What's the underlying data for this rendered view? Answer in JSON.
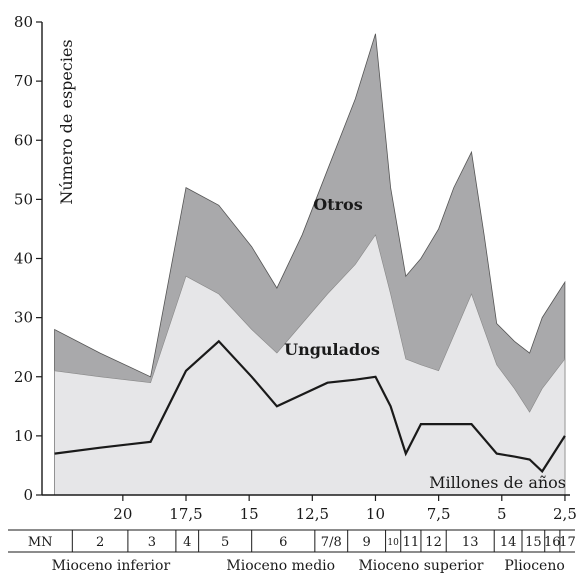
{
  "chart_data": {
    "type": "area",
    "title": "",
    "ylabel": "Número de especies",
    "xlabel": "Millones de años",
    "ylim": [
      0,
      80
    ],
    "xlim": [
      23.2,
      2.3
    ],
    "yticks": [
      0,
      10,
      20,
      30,
      40,
      50,
      60,
      70,
      80
    ],
    "xticks": [
      "20",
      "17,5",
      "15",
      "12,5",
      "10",
      "7,5",
      "5",
      "2,5"
    ],
    "xtick_values": [
      20,
      17.5,
      15,
      12.5,
      10,
      7.5,
      5,
      2.5
    ],
    "series_labels": {
      "others": "Otros",
      "ungulates": "Ungulados"
    },
    "colors": {
      "others": "#a9a9ab",
      "ungulates": "#e6e6e8",
      "line": "#1a1a1a"
    },
    "series": [
      {
        "name": "Otros",
        "x": [
          22.7,
          20.9,
          18.9,
          17.5,
          16.2,
          14.9,
          13.9,
          12.9,
          11.9,
          10.8,
          10.0,
          9.4,
          8.8,
          8.2,
          7.5,
          6.9,
          6.2,
          5.7,
          5.2,
          4.5,
          3.9,
          3.4,
          2.5
        ],
        "values": [
          28,
          24,
          20,
          52,
          49,
          42,
          35,
          44,
          55,
          67,
          78,
          52,
          37,
          40,
          45,
          52,
          58,
          44,
          29,
          26,
          24,
          30,
          36
        ]
      },
      {
        "name": "Ungulados",
        "x": [
          22.7,
          20.9,
          18.9,
          17.5,
          16.2,
          14.9,
          13.9,
          12.9,
          11.9,
          10.8,
          10.0,
          9.4,
          8.8,
          8.2,
          7.5,
          6.9,
          6.2,
          5.7,
          5.2,
          4.5,
          3.9,
          3.4,
          2.5
        ],
        "values": [
          21,
          20,
          19,
          37,
          34,
          28,
          24,
          29,
          34,
          39,
          44,
          34,
          23,
          22,
          21,
          27,
          34,
          28,
          22,
          18,
          14,
          18,
          23
        ]
      },
      {
        "name": "",
        "x": [
          22.7,
          20.9,
          18.9,
          17.5,
          16.2,
          14.9,
          13.9,
          12.9,
          11.9,
          10.8,
          10.0,
          9.4,
          8.8,
          8.2,
          7.5,
          6.9,
          6.2,
          5.7,
          5.2,
          4.5,
          3.9,
          3.4,
          2.5
        ],
        "values": [
          7,
          8,
          9,
          21,
          26,
          20,
          15,
          17,
          19,
          19.5,
          20,
          15,
          7,
          12,
          12,
          12,
          12,
          9.5,
          7,
          6.5,
          6,
          4,
          10
        ]
      }
    ],
    "mn_units": [
      {
        "label": "MN",
        "from": 23.2,
        "to": 22.0
      },
      {
        "label": "2",
        "from": 22.0,
        "to": 19.8
      },
      {
        "label": "3",
        "from": 19.8,
        "to": 17.9
      },
      {
        "label": "4",
        "from": 17.9,
        "to": 17.0
      },
      {
        "label": "5",
        "from": 17.0,
        "to": 14.9
      },
      {
        "label": "6",
        "from": 14.9,
        "to": 12.4
      },
      {
        "label": "7/8",
        "from": 12.4,
        "to": 11.1
      },
      {
        "label": "9",
        "from": 11.1,
        "to": 9.6
      },
      {
        "label": "10",
        "from": 9.6,
        "to": 9.0
      },
      {
        "label": "11",
        "from": 9.0,
        "to": 8.2
      },
      {
        "label": "12",
        "from": 8.2,
        "to": 7.2
      },
      {
        "label": "13",
        "from": 7.2,
        "to": 5.3
      },
      {
        "label": "14",
        "from": 5.3,
        "to": 4.2
      },
      {
        "label": "15",
        "from": 4.2,
        "to": 3.3
      },
      {
        "label": "16",
        "from": 3.3,
        "to": 2.7
      },
      {
        "label": "17",
        "from": 2.7,
        "to": 2.3
      }
    ],
    "epochs": [
      {
        "label": "Mioceno inferior",
        "from": 23.2,
        "to": 16.4
      },
      {
        "label": "Mioceno medio",
        "from": 16.4,
        "to": 11.1
      },
      {
        "label": "Mioceno superior",
        "from": 11.1,
        "to": 5.3
      },
      {
        "label": "Plioceno",
        "from": 5.3,
        "to": 2.3
      }
    ]
  }
}
